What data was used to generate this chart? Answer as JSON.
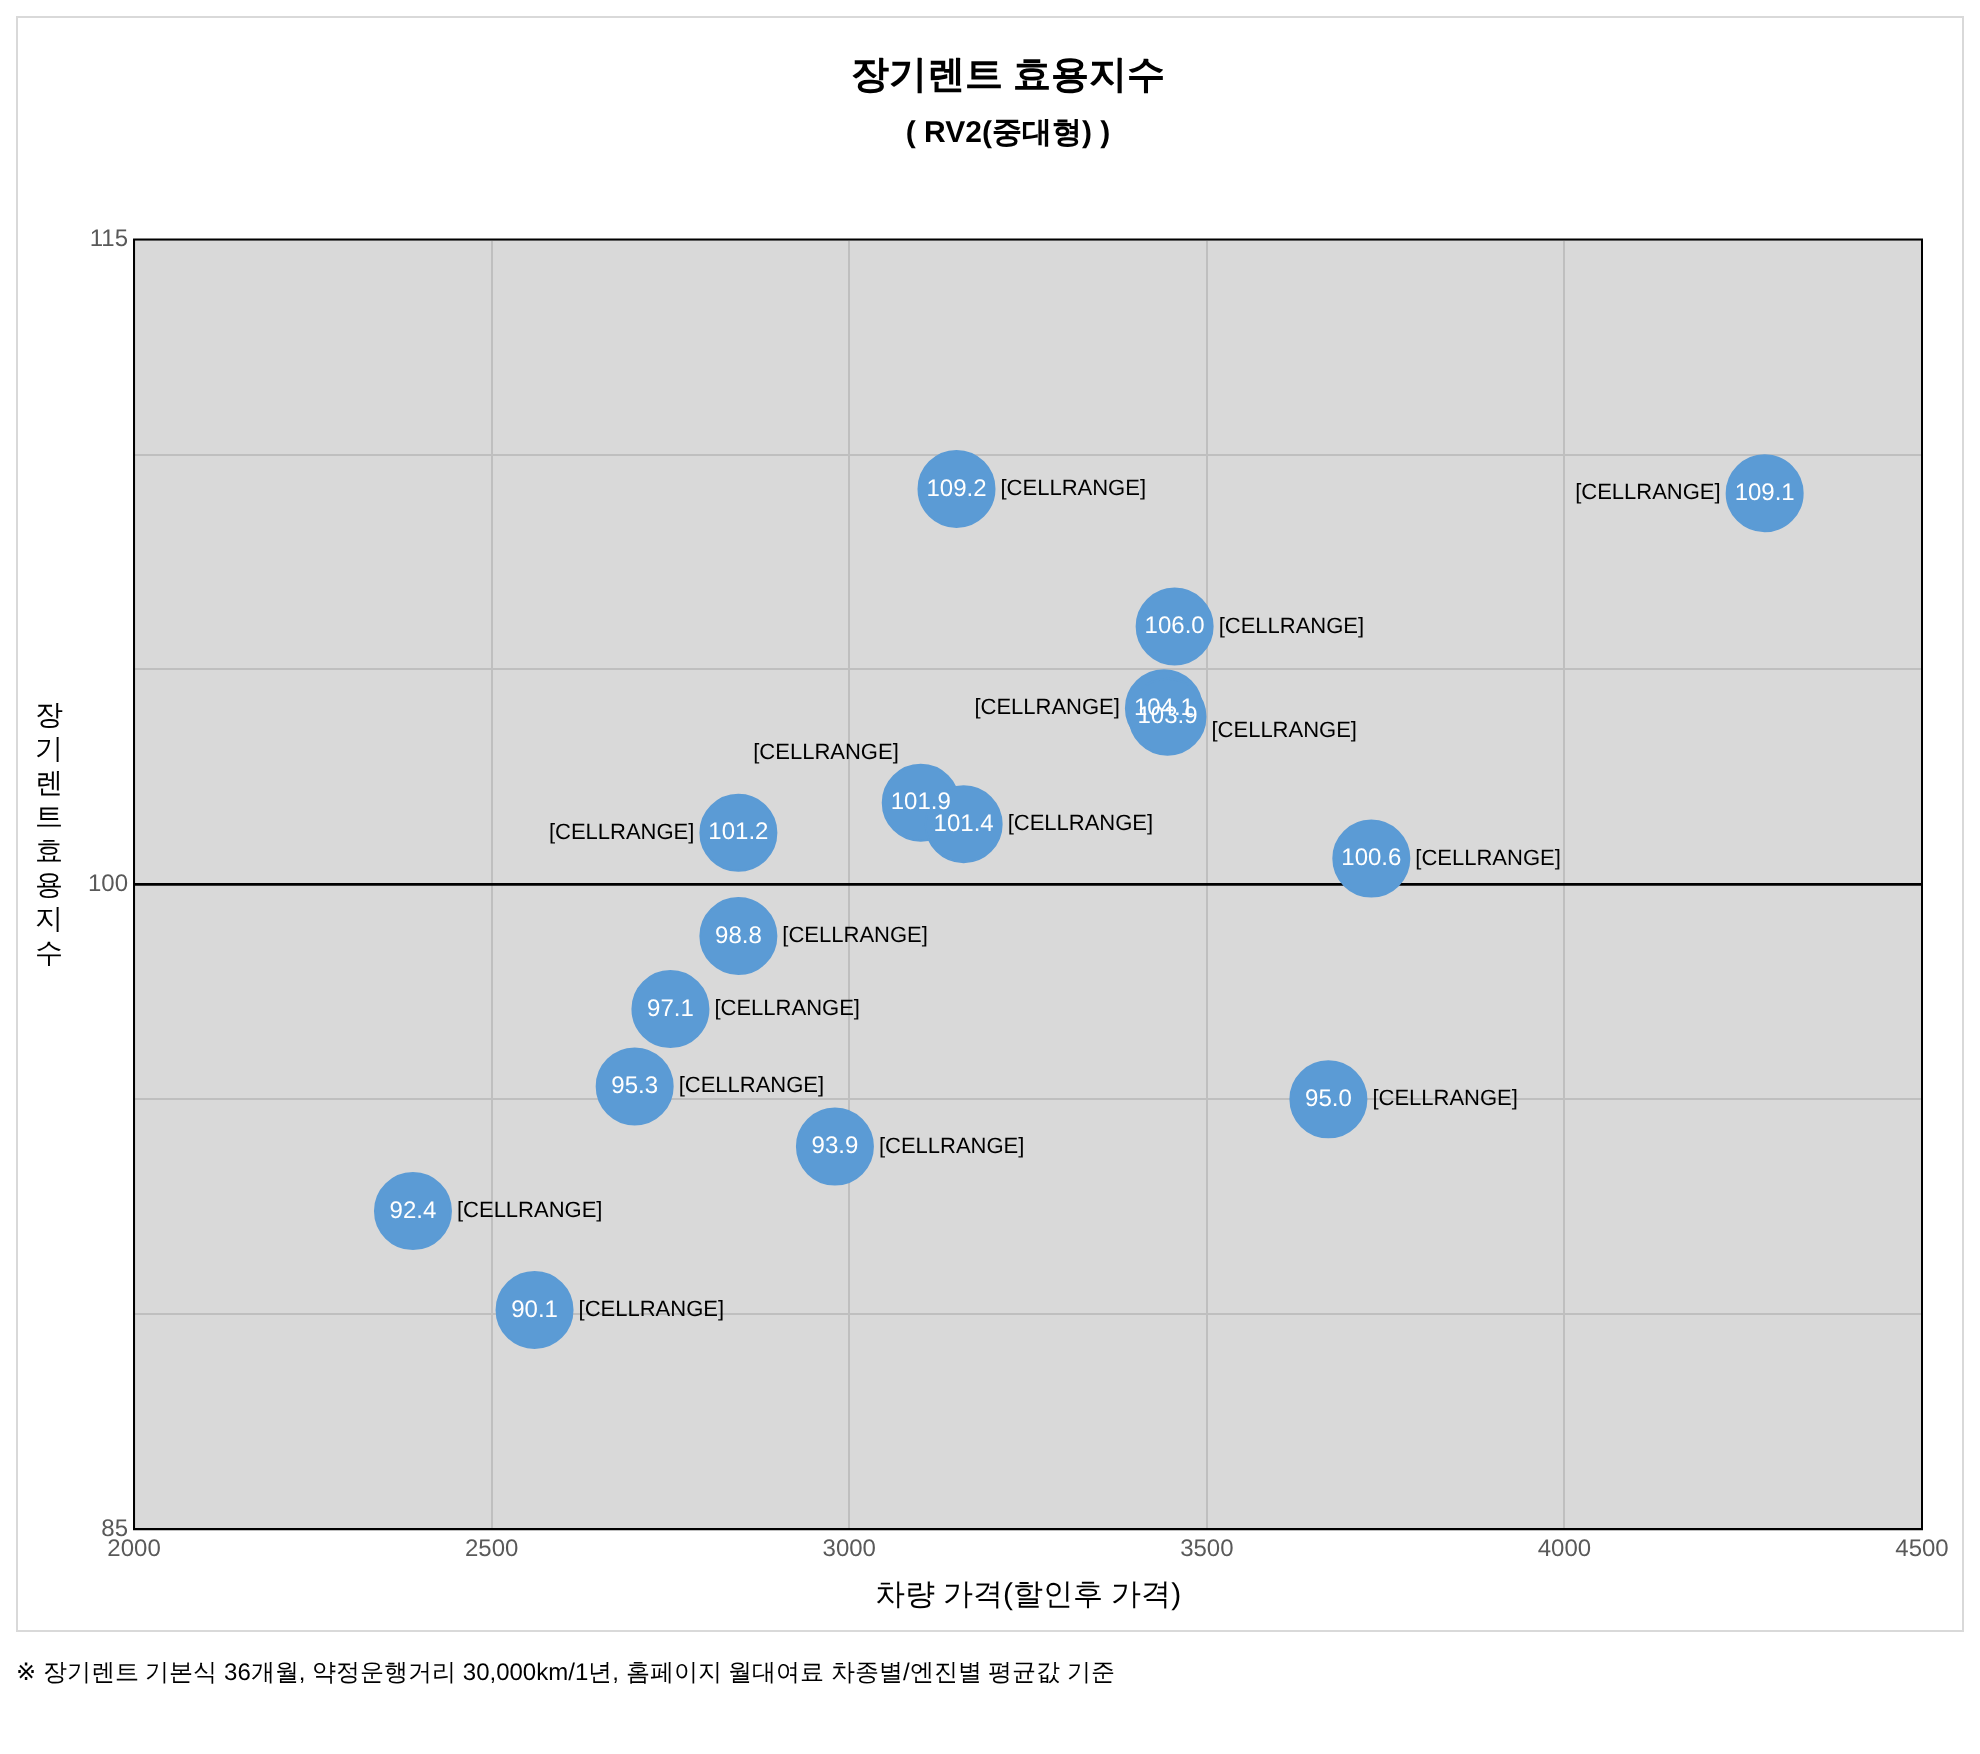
{
  "chart_data": {
    "type": "scatter",
    "title": "장기렌트 효용지수",
    "subtitle": "( RV2(중대형) )",
    "xlabel": "차량 가격(할인후 가격)",
    "ylabel": "장기렌트 효용지수",
    "x": [
      3150,
      4280,
      3455,
      3440,
      3445,
      3100,
      2845,
      3160,
      3730,
      2845,
      2750,
      2700,
      3670,
      2980,
      2390,
      2560
    ],
    "series": [
      {
        "color": "#5b9bd5",
        "values": [
          109.2,
          109.1,
          106.0,
          104.1,
          103.9,
          101.9,
          101.2,
          101.4,
          100.6,
          98.8,
          97.1,
          95.3,
          95.0,
          93.9,
          92.4,
          90.1
        ],
        "value_labels": [
          "109.2",
          "109.1",
          "106.0",
          "104.1",
          "103.9",
          "101.9",
          "101.2",
          "101.4",
          "100.6",
          "98.8",
          "97.1",
          "95.3",
          "95.0",
          "93.9",
          "92.4",
          "90.1"
        ]
      }
    ],
    "marker": "circle",
    "grid": true,
    "xlim": [
      2000,
      4500
    ],
    "xticks": [
      2000,
      2500,
      3000,
      3500,
      4000,
      4500
    ],
    "ylim": [
      85,
      115
    ],
    "yticks": [
      85,
      {
        "value": 90,
        "label": null
      },
      {
        "value": 95,
        "label": null
      },
      100,
      {
        "value": 105,
        "label": null
      },
      {
        "value": 110,
        "label": null
      },
      115
    ],
    "ref_lines": [
      {
        "axis": "y",
        "value": 100,
        "color": "#000000"
      }
    ],
    "annotations": [
      {
        "text": "[CELLRANGE]",
        "x": 3150,
        "y": 109.2
      },
      {
        "text": "[CELLRANGE]",
        "x": 4280,
        "y": 109.1
      },
      {
        "text": "[CELLRANGE]",
        "x": 3455,
        "y": 106.0
      },
      {
        "text": "[CELLRANGE]",
        "x": 3440,
        "y": 104.1
      },
      {
        "text": "[CELLRANGE]",
        "x": 3445,
        "y": 103.9
      },
      {
        "text": "[CELLRANGE]",
        "x": 3100,
        "y": 101.9
      },
      {
        "text": "[CELLRANGE]",
        "x": 2845,
        "y": 101.2
      },
      {
        "text": "[CELLRANGE]",
        "x": 3160,
        "y": 101.4
      },
      {
        "text": "[CELLRANGE]",
        "x": 3730,
        "y": 100.6
      },
      {
        "text": "[CELLRANGE]",
        "x": 2845,
        "y": 98.8
      },
      {
        "text": "[CELLRANGE]",
        "x": 2750,
        "y": 97.1
      },
      {
        "text": "[CELLRANGE]",
        "x": 2700,
        "y": 95.3
      },
      {
        "text": "[CELLRANGE]",
        "x": 3670,
        "y": 95.0
      },
      {
        "text": "[CELLRANGE]",
        "x": 2980,
        "y": 93.9
      },
      {
        "text": "[CELLRANGE]",
        "x": 2390,
        "y": 92.4
      },
      {
        "text": "[CELLRANGE]",
        "x": 2560,
        "y": 90.1
      },
      "※ 장기렌트 기본식 36개월, 약정운행거리 30,000km/1년, 홈페이지 월대여료 차종별/엔진별 평균값 기준"
    ]
  }
}
